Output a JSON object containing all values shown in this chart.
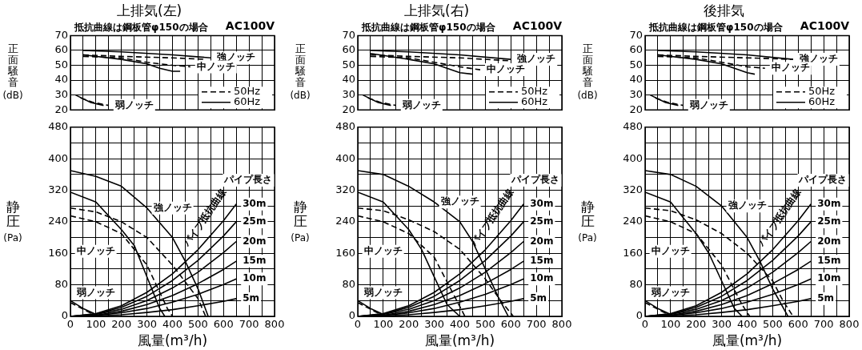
{
  "chart_data": [
    {
      "type": "line",
      "title": "上排気(左)",
      "ylabel": "正面騒音(dB)",
      "xlim": [
        0,
        800
      ],
      "ylim": [
        20,
        70
      ],
      "xticks": [
        0,
        {
          "value": 50,
          "label": null
        },
        100,
        {
          "value": 150,
          "label": null
        },
        200,
        {
          "value": 250,
          "label": null
        },
        300,
        {
          "value": 350,
          "label": null
        },
        400,
        {
          "value": 450,
          "label": null
        },
        500,
        {
          "value": 550,
          "label": null
        },
        600,
        {
          "value": 650,
          "label": null
        },
        700,
        {
          "value": 750,
          "label": null
        },
        800
      ],
      "yticks": [
        20,
        30,
        40,
        50,
        60,
        70
      ],
      "tick_labels": "y",
      "grid": true,
      "legend": "bottom right",
      "marker": "none",
      "annotations": [
        "抵抗曲線は鋼板管φ150の場合",
        "AC100V",
        {
          "text": "強ノッチ",
          "x": 550,
          "y": 55
        },
        {
          "text": "中ノッチ",
          "x": 470,
          "y": 49
        },
        {
          "text": "弱ノッチ",
          "x": 150,
          "y": 23
        }
      ],
      "series": [
        {
          "name": "50Hz",
          "color": "#000000",
          "line_style": "dashed",
          "x": [
            50,
            200,
            400,
            530
          ],
          "values": [
            57,
            56,
            55,
            54
          ]
        },
        {
          "name": "60Hz",
          "color": "#000000",
          "line_style": "solid",
          "x": [
            50,
            200,
            400,
            550
          ],
          "values": [
            60,
            59,
            57,
            55
          ]
        },
        {
          "color": "#000000",
          "line_style": "dashed",
          "x": [
            50,
            200,
            300,
            400,
            470
          ],
          "values": [
            56,
            55,
            52,
            50,
            49
          ]
        },
        {
          "color": "#000000",
          "line_style": "solid",
          "x": [
            50,
            200,
            300,
            350,
            400,
            430
          ],
          "values": [
            57,
            54,
            51,
            48,
            46,
            46
          ]
        },
        {
          "color": "#000000",
          "line_style": "dashed",
          "x": [
            40,
            90,
            150
          ],
          "values": [
            28,
            25,
            23
          ]
        },
        {
          "color": "#000000",
          "line_style": "solid",
          "x": [
            20,
            80,
            130
          ],
          "values": [
            30,
            25,
            23
          ]
        }
      ]
    },
    {
      "type": "line",
      "xlabel": "風量(m³/h)",
      "ylabel": "静圧(Pa)",
      "xlim": [
        0,
        800
      ],
      "ylim": [
        0,
        480
      ],
      "xticks": [
        0,
        {
          "value": 50,
          "label": null
        },
        100,
        {
          "value": 150,
          "label": null
        },
        200,
        {
          "value": 250,
          "label": null
        },
        300,
        {
          "value": 350,
          "label": null
        },
        400,
        {
          "value": 450,
          "label": null
        },
        500,
        {
          "value": 550,
          "label": null
        },
        600,
        {
          "value": 650,
          "label": null
        },
        700,
        {
          "value": 750,
          "label": null
        },
        800
      ],
      "yticks": [
        0,
        {
          "value": 40,
          "label": null
        },
        80,
        {
          "value": 120,
          "label": null
        },
        160,
        {
          "value": 200,
          "label": null
        },
        240,
        {
          "value": 280,
          "label": null
        },
        320,
        {
          "value": 360,
          "label": null
        },
        400,
        {
          "value": 440,
          "label": null
        },
        480
      ],
      "grid": true,
      "marker": "none",
      "annotations": [
        "中ノッチ",
        "弱ノッチ",
        "パイプ抵抗曲線",
        "パイプ長さ",
        {
          "text": "強ノッチ",
          "x": 300,
          "y": 275
        },
        {
          "text": "30m",
          "x": 650,
          "y": 285
        },
        {
          "text": "25m",
          "x": 650,
          "y": 240
        },
        {
          "text": "20m",
          "x": 650,
          "y": 190
        },
        {
          "text": "15m",
          "x": 650,
          "y": 140
        },
        {
          "text": "10m",
          "x": 650,
          "y": 95
        },
        {
          "text": "5m",
          "x": 650,
          "y": 45
        }
      ],
      "series": [
        {
          "color": "#000000",
          "line_style": "solid",
          "x": [
            0,
            100,
            200,
            300,
            400,
            450,
            500,
            540
          ],
          "values": [
            370,
            355,
            330,
            275,
            200,
            140,
            70,
            0
          ]
        },
        {
          "color": "#000000",
          "line_style": "dashed",
          "x": [
            0,
            100,
            200,
            300,
            400,
            500,
            530
          ],
          "values": [
            275,
            265,
            240,
            200,
            130,
            45,
            0
          ]
        },
        {
          "color": "#000000",
          "line_style": "solid",
          "x": [
            0,
            100,
            200,
            250,
            300,
            350,
            370
          ],
          "values": [
            315,
            290,
            220,
            180,
            100,
            20,
            0
          ]
        },
        {
          "color": "#000000",
          "line_style": "dashed",
          "x": [
            0,
            100,
            200,
            300,
            380,
            400
          ],
          "values": [
            255,
            240,
            210,
            130,
            20,
            0
          ]
        },
        {
          "color": "#000000",
          "line_style": "solid",
          "x": [
            0,
            50,
            100
          ],
          "values": [
            40,
            20,
            5
          ]
        },
        {
          "color": "#000000",
          "line_style": "dashed",
          "x": [
            0,
            50,
            90
          ],
          "values": [
            35,
            18,
            5
          ]
        },
        {
          "color": "#000000",
          "line_style": "solid",
          "x": [
            0,
            100,
            200,
            300,
            400,
            500,
            600,
            650
          ],
          "values": [
            0,
            1,
            4,
            10,
            17,
            27,
            38,
            45
          ]
        },
        {
          "color": "#000000",
          "line_style": "solid",
          "x": [
            0,
            100,
            200,
            300,
            400,
            500,
            600,
            650
          ],
          "values": [
            0,
            2,
            9,
            20,
            36,
            56,
            81,
            95
          ]
        },
        {
          "color": "#000000",
          "line_style": "solid",
          "x": [
            0,
            100,
            200,
            300,
            400,
            500,
            600,
            650
          ],
          "values": [
            0,
            3,
            13,
            30,
            53,
            83,
            119,
            140
          ]
        },
        {
          "color": "#000000",
          "line_style": "solid",
          "x": [
            0,
            100,
            200,
            300,
            400,
            500,
            600,
            650
          ],
          "values": [
            0,
            5,
            18,
            40,
            72,
            112,
            162,
            190
          ]
        },
        {
          "color": "#000000",
          "line_style": "solid",
          "x": [
            0,
            100,
            200,
            300,
            400,
            500,
            600,
            650
          ],
          "values": [
            0,
            6,
            23,
            51,
            91,
            142,
            204,
            240
          ]
        },
        {
          "color": "#000000",
          "line_style": "solid",
          "x": [
            0,
            100,
            200,
            300,
            400,
            500,
            600,
            650
          ],
          "values": [
            0,
            7,
            27,
            61,
            108,
            169,
            243,
            285
          ]
        }
      ]
    },
    {
      "type": "line",
      "title": "上排気(右)",
      "ylabel": "正面騒音(dB)",
      "xlim": [
        0,
        800
      ],
      "ylim": [
        20,
        70
      ],
      "xticks": [
        0,
        {
          "value": 50,
          "label": null
        },
        100,
        {
          "value": 150,
          "label": null
        },
        200,
        {
          "value": 250,
          "label": null
        },
        300,
        {
          "value": 350,
          "label": null
        },
        400,
        {
          "value": 450,
          "label": null
        },
        500,
        {
          "value": 550,
          "label": null
        },
        600,
        {
          "value": 650,
          "label": null
        },
        700,
        {
          "value": 750,
          "label": null
        },
        800
      ],
      "yticks": [
        20,
        30,
        40,
        50,
        60,
        70
      ],
      "tick_labels": "y",
      "grid": true,
      "legend": "bottom right",
      "marker": "none",
      "annotations": [
        "抵抗曲線は鋼板管φ150の場合",
        "AC100V",
        {
          "text": "強ノッチ",
          "x": 600,
          "y": 54
        },
        {
          "text": "中ノッチ",
          "x": 480,
          "y": 47
        },
        {
          "text": "弱ノッチ",
          "x": 150,
          "y": 23
        }
      ],
      "series": [
        {
          "name": "50Hz",
          "color": "#000000",
          "line_style": "dashed",
          "x": [
            50,
            200,
            400,
            600
          ],
          "values": [
            57,
            56,
            55,
            53
          ]
        },
        {
          "name": "60Hz",
          "color": "#000000",
          "line_style": "solid",
          "x": [
            50,
            200,
            400,
            600
          ],
          "values": [
            60,
            59,
            57,
            54
          ]
        },
        {
          "color": "#000000",
          "line_style": "dashed",
          "x": [
            50,
            200,
            300,
            400,
            480
          ],
          "values": [
            56,
            55,
            52,
            49,
            47
          ]
        },
        {
          "color": "#000000",
          "line_style": "solid",
          "x": [
            50,
            200,
            300,
            350,
            400,
            450
          ],
          "values": [
            58,
            54,
            51,
            48,
            45,
            44
          ]
        },
        {
          "color": "#000000",
          "line_style": "dashed",
          "x": [
            40,
            90,
            150
          ],
          "values": [
            28,
            25,
            23
          ]
        },
        {
          "color": "#000000",
          "line_style": "solid",
          "x": [
            20,
            80,
            130
          ],
          "values": [
            30,
            25,
            23
          ]
        }
      ]
    },
    {
      "type": "line",
      "xlabel": "風量(m³/h)",
      "ylabel": "静圧(Pa)",
      "xlim": [
        0,
        800
      ],
      "ylim": [
        0,
        480
      ],
      "xticks": [
        0,
        {
          "value": 50,
          "label": null
        },
        100,
        {
          "value": 150,
          "label": null
        },
        200,
        {
          "value": 250,
          "label": null
        },
        300,
        {
          "value": 350,
          "label": null
        },
        400,
        {
          "value": 450,
          "label": null
        },
        500,
        {
          "value": 550,
          "label": null
        },
        600,
        {
          "value": 650,
          "label": null
        },
        700,
        {
          "value": 750,
          "label": null
        },
        800
      ],
      "yticks": [
        0,
        {
          "value": 40,
          "label": null
        },
        80,
        {
          "value": 120,
          "label": null
        },
        160,
        {
          "value": 200,
          "label": null
        },
        240,
        {
          "value": 280,
          "label": null
        },
        320,
        {
          "value": 360,
          "label": null
        },
        400,
        {
          "value": 440,
          "label": null
        },
        480
      ],
      "grid": true,
      "marker": "none",
      "annotations": [
        "中ノッチ",
        "弱ノッチ",
        "パイプ抵抗曲線",
        "パイプ長さ",
        {
          "text": "強ノッチ",
          "x": 300,
          "y": 290
        },
        {
          "text": "30m",
          "x": 650,
          "y": 285
        },
        {
          "text": "25m",
          "x": 650,
          "y": 240
        },
        {
          "text": "20m",
          "x": 650,
          "y": 190
        },
        {
          "text": "15m",
          "x": 650,
          "y": 140
        },
        {
          "text": "10m",
          "x": 650,
          "y": 95
        },
        {
          "text": "5m",
          "x": 650,
          "y": 45
        }
      ],
      "series": [
        {
          "color": "#000000",
          "line_style": "solid",
          "x": [
            0,
            100,
            200,
            300,
            400,
            450,
            500,
            550,
            590
          ],
          "values": [
            370,
            360,
            330,
            290,
            240,
            190,
            120,
            50,
            0
          ]
        },
        {
          "color": "#000000",
          "line_style": "dashed",
          "x": [
            0,
            100,
            200,
            300,
            400,
            500,
            560,
            610
          ],
          "values": [
            275,
            268,
            245,
            215,
            170,
            95,
            40,
            0
          ]
        },
        {
          "color": "#000000",
          "line_style": "solid",
          "x": [
            0,
            100,
            200,
            250,
            300,
            350,
            400
          ],
          "values": [
            315,
            290,
            220,
            170,
            100,
            30,
            0
          ]
        },
        {
          "color": "#000000",
          "line_style": "dashed",
          "x": [
            0,
            100,
            200,
            300,
            380,
            420
          ],
          "values": [
            255,
            240,
            210,
            150,
            50,
            0
          ]
        },
        {
          "color": "#000000",
          "line_style": "solid",
          "x": [
            0,
            50,
            100
          ],
          "values": [
            40,
            20,
            5
          ]
        },
        {
          "color": "#000000",
          "line_style": "dashed",
          "x": [
            0,
            50,
            90
          ],
          "values": [
            35,
            18,
            5
          ]
        },
        {
          "color": "#000000",
          "line_style": "solid",
          "x": [
            0,
            100,
            200,
            300,
            400,
            500,
            600,
            650
          ],
          "values": [
            0,
            1,
            4,
            10,
            17,
            27,
            38,
            45
          ]
        },
        {
          "color": "#000000",
          "line_style": "solid",
          "x": [
            0,
            100,
            200,
            300,
            400,
            500,
            600,
            650
          ],
          "values": [
            0,
            2,
            9,
            20,
            36,
            56,
            81,
            95
          ]
        },
        {
          "color": "#000000",
          "line_style": "solid",
          "x": [
            0,
            100,
            200,
            300,
            400,
            500,
            600,
            650
          ],
          "values": [
            0,
            3,
            13,
            30,
            53,
            83,
            119,
            140
          ]
        },
        {
          "color": "#000000",
          "line_style": "solid",
          "x": [
            0,
            100,
            200,
            300,
            400,
            500,
            600,
            650
          ],
          "values": [
            0,
            5,
            18,
            40,
            72,
            112,
            162,
            190
          ]
        },
        {
          "color": "#000000",
          "line_style": "solid",
          "x": [
            0,
            100,
            200,
            300,
            400,
            500,
            600,
            650
          ],
          "values": [
            0,
            6,
            23,
            51,
            91,
            142,
            204,
            240
          ]
        },
        {
          "color": "#000000",
          "line_style": "solid",
          "x": [
            0,
            100,
            200,
            300,
            400,
            500,
            600,
            650
          ],
          "values": [
            0,
            7,
            27,
            61,
            108,
            169,
            243,
            285
          ]
        }
      ]
    },
    {
      "type": "line",
      "title": "後排気",
      "ylabel": "正面騒音(dB)",
      "xlim": [
        0,
        800
      ],
      "ylim": [
        20,
        70
      ],
      "xticks": [
        0,
        {
          "value": 50,
          "label": null
        },
        100,
        {
          "value": 150,
          "label": null
        },
        200,
        {
          "value": 250,
          "label": null
        },
        300,
        {
          "value": 350,
          "label": null
        },
        400,
        {
          "value": 450,
          "label": null
        },
        500,
        {
          "value": 550,
          "label": null
        },
        600,
        {
          "value": 650,
          "label": null
        },
        700,
        {
          "value": 750,
          "label": null
        },
        800
      ],
      "yticks": [
        20,
        30,
        40,
        50,
        60,
        70
      ],
      "tick_labels": "y",
      "grid": true,
      "legend": "bottom right",
      "marker": "none",
      "annotations": [
        "抵抗曲線は鋼板管φ150の場合",
        "AC100V",
        {
          "text": "強ノッチ",
          "x": 580,
          "y": 54
        },
        {
          "text": "中ノッチ",
          "x": 470,
          "y": 48
        },
        {
          "text": "弱ノッチ",
          "x": 150,
          "y": 23
        }
      ],
      "series": [
        {
          "name": "50Hz",
          "color": "#000000",
          "line_style": "dashed",
          "x": [
            50,
            200,
            400,
            580
          ],
          "values": [
            57,
            56,
            55,
            54
          ]
        },
        {
          "name": "60Hz",
          "color": "#000000",
          "line_style": "solid",
          "x": [
            50,
            200,
            400,
            580
          ],
          "values": [
            60,
            59,
            57,
            54
          ]
        },
        {
          "color": "#000000",
          "line_style": "dashed",
          "x": [
            50,
            200,
            300,
            400,
            470
          ],
          "values": [
            56,
            55,
            52,
            49,
            48
          ]
        },
        {
          "color": "#000000",
          "line_style": "solid",
          "x": [
            50,
            200,
            300,
            350,
            400,
            430
          ],
          "values": [
            57,
            54,
            51,
            48,
            45,
            44
          ]
        },
        {
          "color": "#000000",
          "line_style": "dashed",
          "x": [
            40,
            90,
            150
          ],
          "values": [
            28,
            25,
            23
          ]
        },
        {
          "color": "#000000",
          "line_style": "solid",
          "x": [
            20,
            80,
            130
          ],
          "values": [
            30,
            25,
            23
          ]
        }
      ]
    },
    {
      "type": "line",
      "xlabel": "風量(m³/h)",
      "ylabel": "静圧(Pa)",
      "xlim": [
        0,
        800
      ],
      "ylim": [
        0,
        480
      ],
      "xticks": [
        0,
        {
          "value": 50,
          "label": null
        },
        100,
        {
          "value": 150,
          "label": null
        },
        200,
        {
          "value": 250,
          "label": null
        },
        300,
        {
          "value": 350,
          "label": null
        },
        400,
        {
          "value": 450,
          "label": null
        },
        500,
        {
          "value": 550,
          "label": null
        },
        600,
        {
          "value": 650,
          "label": null
        },
        700,
        {
          "value": 750,
          "label": null
        },
        800
      ],
      "yticks": [
        0,
        {
          "value": 40,
          "label": null
        },
        80,
        {
          "value": 120,
          "label": null
        },
        160,
        {
          "value": 200,
          "label": null
        },
        240,
        {
          "value": 280,
          "label": null
        },
        320,
        {
          "value": 360,
          "label": null
        },
        400,
        {
          "value": 440,
          "label": null
        },
        480
      ],
      "grid": true,
      "marker": "none",
      "annotations": [
        "中ノッチ",
        "弱ノッチ",
        "パイプ抵抗曲線",
        "パイプ長さ",
        {
          "text": "強ノッチ",
          "x": 300,
          "y": 280
        },
        {
          "text": "30m",
          "x": 650,
          "y": 285
        },
        {
          "text": "25m",
          "x": 650,
          "y": 240
        },
        {
          "text": "20m",
          "x": 650,
          "y": 190
        },
        {
          "text": "15m",
          "x": 650,
          "y": 140
        },
        {
          "text": "10m",
          "x": 650,
          "y": 95
        },
        {
          "text": "5m",
          "x": 650,
          "y": 45
        }
      ],
      "series": [
        {
          "color": "#000000",
          "line_style": "solid",
          "x": [
            0,
            100,
            200,
            300,
            400,
            450,
            500,
            560
          ],
          "values": [
            370,
            360,
            330,
            280,
            200,
            140,
            70,
            0
          ]
        },
        {
          "color": "#000000",
          "line_style": "dashed",
          "x": [
            0,
            100,
            200,
            300,
            400,
            500,
            540,
            580
          ],
          "values": [
            275,
            268,
            245,
            210,
            160,
            90,
            40,
            0
          ]
        },
        {
          "color": "#000000",
          "line_style": "solid",
          "x": [
            0,
            100,
            200,
            250,
            300,
            350,
            380
          ],
          "values": [
            315,
            290,
            210,
            160,
            90,
            20,
            0
          ]
        },
        {
          "color": "#000000",
          "line_style": "dashed",
          "x": [
            0,
            100,
            200,
            300,
            380,
            410
          ],
          "values": [
            255,
            240,
            210,
            130,
            30,
            0
          ]
        },
        {
          "color": "#000000",
          "line_style": "solid",
          "x": [
            0,
            50,
            100
          ],
          "values": [
            40,
            20,
            5
          ]
        },
        {
          "color": "#000000",
          "line_style": "dashed",
          "x": [
            0,
            50,
            90
          ],
          "values": [
            35,
            18,
            5
          ]
        },
        {
          "color": "#000000",
          "line_style": "solid",
          "x": [
            0,
            100,
            200,
            300,
            400,
            500,
            600,
            650
          ],
          "values": [
            0,
            1,
            4,
            10,
            17,
            27,
            38,
            45
          ]
        },
        {
          "color": "#000000",
          "line_style": "solid",
          "x": [
            0,
            100,
            200,
            300,
            400,
            500,
            600,
            650
          ],
          "values": [
            0,
            2,
            9,
            20,
            36,
            56,
            81,
            95
          ]
        },
        {
          "color": "#000000",
          "line_style": "solid",
          "x": [
            0,
            100,
            200,
            300,
            400,
            500,
            600,
            650
          ],
          "values": [
            0,
            3,
            13,
            30,
            53,
            83,
            119,
            140
          ]
        },
        {
          "color": "#000000",
          "line_style": "solid",
          "x": [
            0,
            100,
            200,
            300,
            400,
            500,
            600,
            650
          ],
          "values": [
            0,
            5,
            18,
            40,
            72,
            112,
            162,
            190
          ]
        },
        {
          "color": "#000000",
          "line_style": "solid",
          "x": [
            0,
            100,
            200,
            300,
            400,
            500,
            600,
            650
          ],
          "values": [
            0,
            6,
            23,
            51,
            91,
            142,
            204,
            240
          ]
        },
        {
          "color": "#000000",
          "line_style": "solid",
          "x": [
            0,
            100,
            200,
            300,
            400,
            500,
            600,
            650
          ],
          "values": [
            0,
            7,
            27,
            61,
            108,
            169,
            243,
            285
          ]
        }
      ]
    }
  ]
}
